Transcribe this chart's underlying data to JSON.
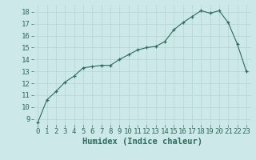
{
  "x": [
    0,
    1,
    2,
    3,
    4,
    5,
    6,
    7,
    8,
    9,
    10,
    11,
    12,
    13,
    14,
    15,
    16,
    17,
    18,
    19,
    20,
    21,
    22,
    23
  ],
  "y": [
    8.7,
    10.6,
    11.3,
    12.1,
    12.6,
    13.3,
    13.4,
    13.5,
    13.5,
    14.0,
    14.4,
    14.8,
    15.0,
    15.1,
    15.5,
    16.5,
    17.1,
    17.6,
    18.1,
    17.9,
    18.1,
    17.1,
    15.3,
    13.0
  ],
  "xlabel": "Humidex (Indice chaleur)",
  "xlim": [
    -0.5,
    23.5
  ],
  "ylim": [
    8.5,
    18.6
  ],
  "yticks": [
    9,
    10,
    11,
    12,
    13,
    14,
    15,
    16,
    17,
    18
  ],
  "xticks": [
    0,
    1,
    2,
    3,
    4,
    5,
    6,
    7,
    8,
    9,
    10,
    11,
    12,
    13,
    14,
    15,
    16,
    17,
    18,
    19,
    20,
    21,
    22,
    23
  ],
  "line_color": "#2d6b5e",
  "marker": "+",
  "bg_color": "#cde8e8",
  "grid_color": "#b8d8d8",
  "xlabel_fontsize": 7.5,
  "tick_fontsize": 6.5
}
